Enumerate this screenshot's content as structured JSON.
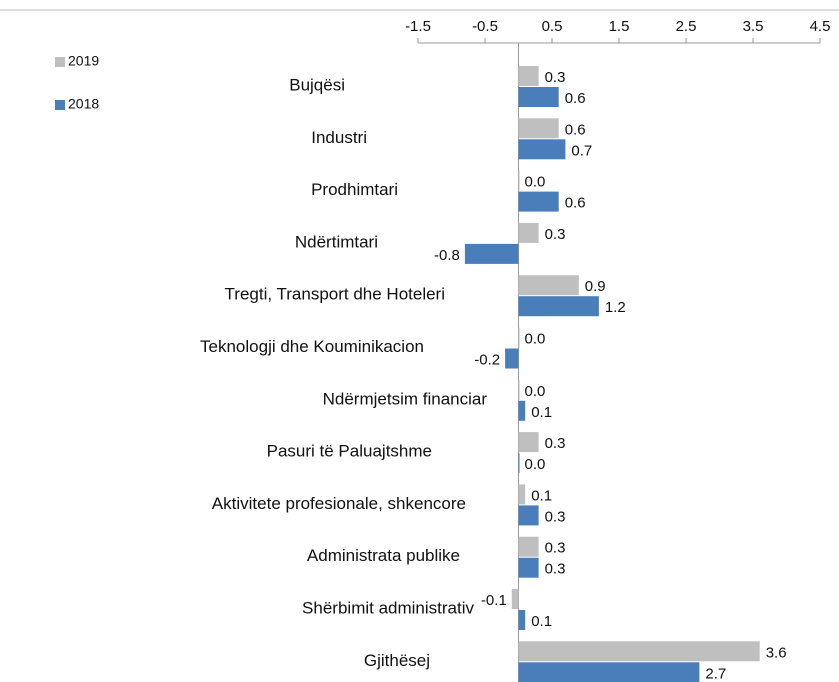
{
  "chart_data": {
    "type": "hbar",
    "categories": [
      "Bujqësi",
      "Industri",
      "Prodhimtari",
      "Ndërtimtari",
      "Tregti, Transport dhe Hoteleri",
      "Teknologji dhe Kouminikacion",
      "Ndërmjetsim financiar",
      "Pasuri të Paluajtshme",
      "Aktivitete profesionale, shkencore",
      "Administrata publike",
      "Shërbimit administrativ",
      "Gjithësej"
    ],
    "series": [
      {
        "name": "2019",
        "color": "#bfbfbf",
        "values": [
          0.3,
          0.6,
          0.0,
          0.3,
          0.9,
          0.0,
          0.0,
          0.3,
          0.1,
          0.3,
          -0.1,
          3.6
        ],
        "value_labels": [
          "0.3",
          "0.6",
          "0.0",
          "0.3",
          "0.9",
          "0.0",
          "0.0",
          "0.3",
          "0.1",
          "0.3",
          "-0.1",
          "3.6"
        ]
      },
      {
        "name": "2018",
        "color": "#4a7ebb",
        "values": [
          0.6,
          0.7,
          0.6,
          -0.8,
          1.2,
          -0.2,
          0.1,
          0.0,
          0.3,
          0.3,
          0.1,
          2.7
        ],
        "value_labels": [
          "0.6",
          "0.7",
          "0.6",
          "-0.8",
          "1.2",
          "-0.2",
          "0.1",
          "0.0",
          "0.3",
          "0.3",
          "0.1",
          "2.7"
        ]
      }
    ],
    "xlim": [
      -1.5,
      4.5
    ],
    "xticks": [
      -1.5,
      -0.5,
      0.5,
      1.5,
      2.5,
      3.5,
      4.5
    ],
    "legend": "top-left"
  }
}
